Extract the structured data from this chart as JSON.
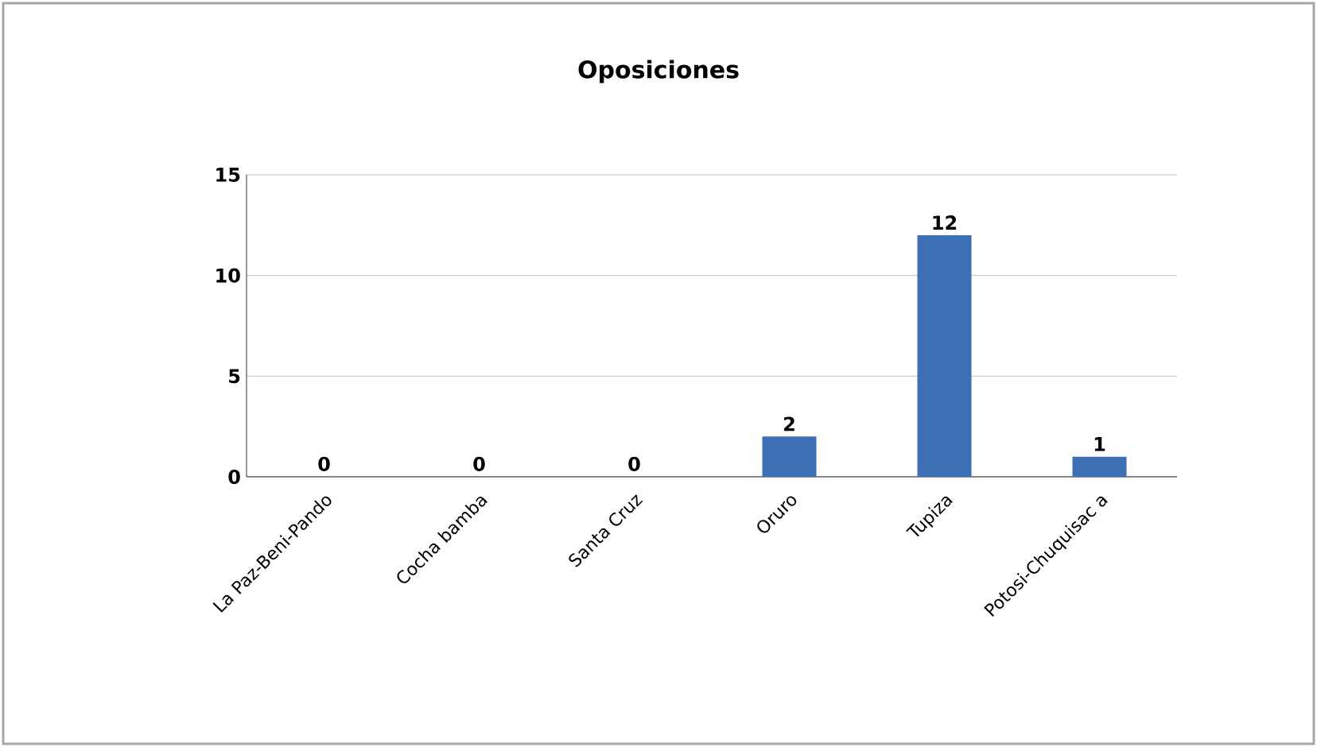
{
  "chart_data": {
    "type": "bar",
    "title": "Oposiciones",
    "categories": [
      "La Paz-Beni-Pando",
      "Cocha bamba",
      "Santa Cruz",
      "Oruro",
      "Tupiza",
      "Potosi-Chuquisac a"
    ],
    "values": [
      0,
      0,
      0,
      2,
      12,
      1
    ],
    "color": "#3d6fb4",
    "ylim": [
      0,
      15
    ],
    "yticks": [
      0,
      5,
      10,
      15
    ],
    "grid": "y",
    "data_labels": true
  }
}
